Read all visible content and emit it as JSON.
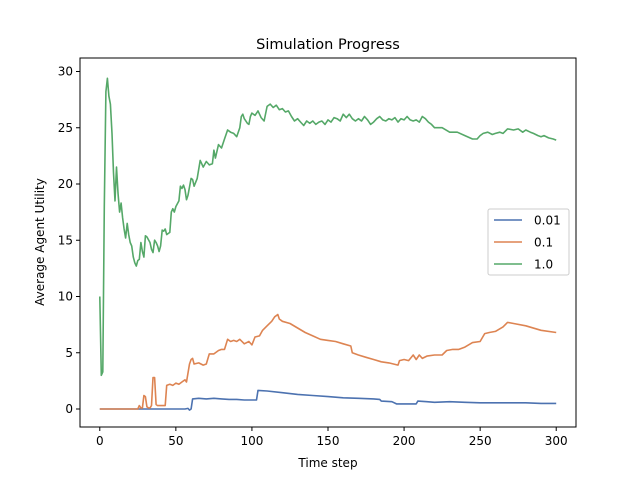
{
  "chart_data": {
    "type": "line",
    "title": "Simulation Progress",
    "xlabel": "Time step",
    "ylabel": "Average Agent Utility",
    "xlim": [
      -13,
      313
    ],
    "ylim": [
      -1.6,
      31.2
    ],
    "xticks": [
      0,
      50,
      100,
      150,
      200,
      250,
      300
    ],
    "yticks": [
      0,
      5,
      10,
      15,
      20,
      25,
      30
    ],
    "grid": false,
    "legend_position": "center-right",
    "series": [
      {
        "name": "0.01",
        "color": "#4c72b0",
        "points": [
          [
            0,
            0
          ],
          [
            20,
            0
          ],
          [
            40,
            0
          ],
          [
            56,
            0
          ],
          [
            58,
            0.05
          ],
          [
            59,
            -0.1
          ],
          [
            60,
            0
          ],
          [
            61,
            0.9
          ],
          [
            65,
            0.95
          ],
          [
            70,
            0.9
          ],
          [
            75,
            0.95
          ],
          [
            80,
            0.9
          ],
          [
            85,
            0.85
          ],
          [
            90,
            0.85
          ],
          [
            95,
            0.8
          ],
          [
            100,
            0.8
          ],
          [
            103,
            0.8
          ],
          [
            104,
            1.65
          ],
          [
            110,
            1.6
          ],
          [
            120,
            1.45
          ],
          [
            130,
            1.3
          ],
          [
            140,
            1.2
          ],
          [
            150,
            1.1
          ],
          [
            160,
            1.0
          ],
          [
            170,
            0.95
          ],
          [
            180,
            0.9
          ],
          [
            184,
            0.85
          ],
          [
            185,
            0.7
          ],
          [
            192,
            0.65
          ],
          [
            195,
            0.45
          ],
          [
            200,
            0.45
          ],
          [
            208,
            0.45
          ],
          [
            209,
            0.7
          ],
          [
            215,
            0.65
          ],
          [
            220,
            0.6
          ],
          [
            230,
            0.65
          ],
          [
            240,
            0.6
          ],
          [
            250,
            0.55
          ],
          [
            260,
            0.55
          ],
          [
            270,
            0.55
          ],
          [
            280,
            0.55
          ],
          [
            290,
            0.5
          ],
          [
            300,
            0.5
          ]
        ]
      },
      {
        "name": "0.1",
        "color": "#dd8452",
        "points": [
          [
            0,
            0
          ],
          [
            25,
            0
          ],
          [
            26,
            0.3
          ],
          [
            27,
            0.1
          ],
          [
            28,
            0.1
          ],
          [
            29,
            1.2
          ],
          [
            30,
            1.1
          ],
          [
            31,
            0.2
          ],
          [
            32,
            0.1
          ],
          [
            33,
            0.1
          ],
          [
            34,
            0.3
          ],
          [
            35,
            2.8
          ],
          [
            36,
            2.8
          ],
          [
            37,
            0.4
          ],
          [
            38,
            0.3
          ],
          [
            43,
            0.3
          ],
          [
            44,
            2.1
          ],
          [
            46,
            2.2
          ],
          [
            48,
            2.1
          ],
          [
            50,
            2.3
          ],
          [
            52,
            2.2
          ],
          [
            54,
            2.4
          ],
          [
            56,
            2.6
          ],
          [
            57,
            2.4
          ],
          [
            58,
            3.2
          ],
          [
            59,
            4.0
          ],
          [
            60,
            4.4
          ],
          [
            61,
            4.5
          ],
          [
            62,
            4.0
          ],
          [
            65,
            4.1
          ],
          [
            68,
            3.9
          ],
          [
            70,
            4.0
          ],
          [
            72,
            4.9
          ],
          [
            75,
            4.9
          ],
          [
            78,
            5.2
          ],
          [
            80,
            5.3
          ],
          [
            82,
            5.3
          ],
          [
            84,
            6.2
          ],
          [
            86,
            6.0
          ],
          [
            88,
            6.1
          ],
          [
            90,
            6.0
          ],
          [
            92,
            6.2
          ],
          [
            95,
            5.8
          ],
          [
            98,
            6.0
          ],
          [
            100,
            5.7
          ],
          [
            102,
            6.4
          ],
          [
            105,
            6.5
          ],
          [
            107,
            7.0
          ],
          [
            110,
            7.4
          ],
          [
            113,
            7.8
          ],
          [
            115,
            8.2
          ],
          [
            117,
            8.4
          ],
          [
            118,
            8.0
          ],
          [
            120,
            7.8
          ],
          [
            125,
            7.6
          ],
          [
            130,
            7.2
          ],
          [
            135,
            6.8
          ],
          [
            140,
            6.5
          ],
          [
            145,
            6.2
          ],
          [
            150,
            6.1
          ],
          [
            155,
            6.0
          ],
          [
            160,
            5.8
          ],
          [
            165,
            5.6
          ],
          [
            166,
            5.0
          ],
          [
            170,
            4.8
          ],
          [
            175,
            4.6
          ],
          [
            180,
            4.4
          ],
          [
            185,
            4.2
          ],
          [
            190,
            4.1
          ],
          [
            196,
            3.9
          ],
          [
            197,
            4.3
          ],
          [
            200,
            4.4
          ],
          [
            203,
            4.3
          ],
          [
            206,
            4.8
          ],
          [
            208,
            4.4
          ],
          [
            210,
            4.8
          ],
          [
            212,
            4.5
          ],
          [
            215,
            4.7
          ],
          [
            220,
            4.8
          ],
          [
            225,
            4.8
          ],
          [
            228,
            5.2
          ],
          [
            232,
            5.3
          ],
          [
            236,
            5.3
          ],
          [
            240,
            5.5
          ],
          [
            245,
            5.9
          ],
          [
            250,
            6.0
          ],
          [
            253,
            6.7
          ],
          [
            256,
            6.8
          ],
          [
            260,
            6.9
          ],
          [
            265,
            7.3
          ],
          [
            268,
            7.7
          ],
          [
            272,
            7.6
          ],
          [
            280,
            7.4
          ],
          [
            290,
            7.0
          ],
          [
            300,
            6.8
          ]
        ]
      },
      {
        "name": "1.0",
        "color": "#55a868",
        "points": [
          [
            0,
            10
          ],
          [
            1,
            3
          ],
          [
            2,
            3.3
          ],
          [
            3,
            18
          ],
          [
            4,
            28.2
          ],
          [
            5,
            29.4
          ],
          [
            6,
            27.8
          ],
          [
            7,
            27.1
          ],
          [
            8,
            24.5
          ],
          [
            9,
            21
          ],
          [
            10,
            18.5
          ],
          [
            11,
            21.5
          ],
          [
            12,
            19.2
          ],
          [
            13,
            17.5
          ],
          [
            14,
            18.3
          ],
          [
            15,
            17
          ],
          [
            16,
            16
          ],
          [
            17,
            15.2
          ],
          [
            18,
            16.5
          ],
          [
            19,
            15.5
          ],
          [
            20,
            14.8
          ],
          [
            21,
            14.5
          ],
          [
            22,
            13.5
          ],
          [
            23,
            13
          ],
          [
            24,
            12.7
          ],
          [
            25,
            13.2
          ],
          [
            26,
            13.3
          ],
          [
            27,
            14.8
          ],
          [
            28,
            14
          ],
          [
            29,
            13.5
          ],
          [
            30,
            15.4
          ],
          [
            31,
            15.3
          ],
          [
            33,
            14.8
          ],
          [
            34,
            14.2
          ],
          [
            35,
            13.9
          ],
          [
            36,
            15.0
          ],
          [
            37,
            14.8
          ],
          [
            38,
            14.5
          ],
          [
            39,
            14
          ],
          [
            40,
            14.5
          ],
          [
            41,
            15.9
          ],
          [
            42,
            15.8
          ],
          [
            43,
            16
          ],
          [
            44,
            15.5
          ],
          [
            45,
            15.6
          ],
          [
            46,
            15.7
          ],
          [
            47,
            17.5
          ],
          [
            48,
            17.8
          ],
          [
            49,
            17.5
          ],
          [
            50,
            18
          ],
          [
            52,
            18.5
          ],
          [
            53,
            19.8
          ],
          [
            54,
            19.6
          ],
          [
            55,
            19.9
          ],
          [
            56,
            19.5
          ],
          [
            57,
            18.6
          ],
          [
            58,
            19.0
          ],
          [
            60,
            20.5
          ],
          [
            61,
            20.4
          ],
          [
            62,
            19.8
          ],
          [
            64,
            20.5
          ],
          [
            66,
            22.1
          ],
          [
            67,
            21.8
          ],
          [
            68,
            21.5
          ],
          [
            70,
            22
          ],
          [
            72,
            21.7
          ],
          [
            74,
            21.8
          ],
          [
            75,
            23
          ],
          [
            76,
            22.3
          ],
          [
            78,
            23.5
          ],
          [
            80,
            23.2
          ],
          [
            82,
            24
          ],
          [
            84,
            24.8
          ],
          [
            86,
            24.6
          ],
          [
            88,
            24.5
          ],
          [
            90,
            24.2
          ],
          [
            92,
            25
          ],
          [
            93,
            26
          ],
          [
            94,
            26.2
          ],
          [
            95,
            25.8
          ],
          [
            97,
            25.4
          ],
          [
            98,
            25.3
          ],
          [
            99,
            26
          ],
          [
            100,
            26.3
          ],
          [
            102,
            26.1
          ],
          [
            104,
            26.5
          ],
          [
            106,
            25.9
          ],
          [
            108,
            25.6
          ],
          [
            110,
            26.9
          ],
          [
            112,
            27.1
          ],
          [
            114,
            26.8
          ],
          [
            116,
            27.0
          ],
          [
            118,
            26.6
          ],
          [
            120,
            26.7
          ],
          [
            122,
            26.4
          ],
          [
            124,
            26.5
          ],
          [
            126,
            26.0
          ],
          [
            128,
            25.6
          ],
          [
            130,
            25.8
          ],
          [
            132,
            25.5
          ],
          [
            134,
            25.2
          ],
          [
            136,
            25.6
          ],
          [
            138,
            25.4
          ],
          [
            140,
            25.6
          ],
          [
            142,
            25.3
          ],
          [
            144,
            25.5
          ],
          [
            146,
            25.6
          ],
          [
            148,
            25.3
          ],
          [
            150,
            25.7
          ],
          [
            152,
            25.5
          ],
          [
            154,
            25.9
          ],
          [
            156,
            25.8
          ],
          [
            158,
            25.6
          ],
          [
            160,
            26.2
          ],
          [
            162,
            25.9
          ],
          [
            164,
            26.2
          ],
          [
            166,
            25.8
          ],
          [
            168,
            25.6
          ],
          [
            170,
            25.8
          ],
          [
            172,
            25.6
          ],
          [
            174,
            26
          ],
          [
            176,
            25.7
          ],
          [
            178,
            25.3
          ],
          [
            180,
            25.5
          ],
          [
            182,
            25.8
          ],
          [
            184,
            26
          ],
          [
            186,
            25.7
          ],
          [
            188,
            25.6
          ],
          [
            190,
            25.8
          ],
          [
            192,
            25.7
          ],
          [
            194,
            25.9
          ],
          [
            196,
            25.5
          ],
          [
            198,
            25.8
          ],
          [
            200,
            25.7
          ],
          [
            202,
            26
          ],
          [
            204,
            25.7
          ],
          [
            206,
            25.6
          ],
          [
            208,
            25.7
          ],
          [
            210,
            25.5
          ],
          [
            212,
            26
          ],
          [
            214,
            25.8
          ],
          [
            216,
            25.5
          ],
          [
            218,
            25.3
          ],
          [
            220,
            25.0
          ],
          [
            225,
            25
          ],
          [
            230,
            24.6
          ],
          [
            235,
            24.6
          ],
          [
            240,
            24.3
          ],
          [
            245,
            24
          ],
          [
            248,
            24
          ],
          [
            250,
            24.3
          ],
          [
            252,
            24.5
          ],
          [
            255,
            24.6
          ],
          [
            258,
            24.4
          ],
          [
            260,
            24.5
          ],
          [
            263,
            24.6
          ],
          [
            265,
            24.5
          ],
          [
            268,
            24.9
          ],
          [
            272,
            24.8
          ],
          [
            275,
            24.9
          ],
          [
            278,
            24.6
          ],
          [
            280,
            24.8
          ],
          [
            283,
            24.6
          ],
          [
            285,
            24.5
          ],
          [
            288,
            24.3
          ],
          [
            290,
            24.2
          ],
          [
            292,
            24.3
          ],
          [
            295,
            24.1
          ],
          [
            298,
            24
          ],
          [
            300,
            23.9
          ]
        ]
      }
    ]
  }
}
